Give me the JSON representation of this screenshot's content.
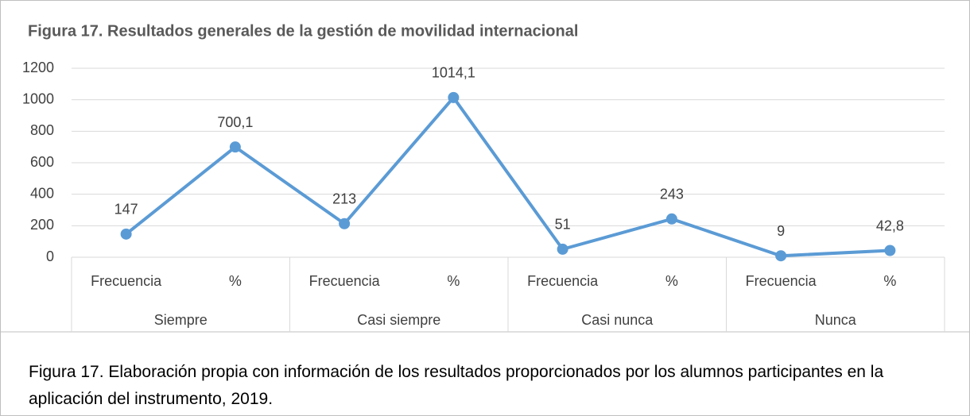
{
  "chart_data": {
    "type": "line",
    "title": "Figura 17. Resultados generales de la gestión de movilidad internacional",
    "categories": [
      "Frecuencia",
      "%",
      "Frecuencia",
      "%",
      "Frecuencia",
      "%",
      "Frecuencia",
      "%"
    ],
    "groups": [
      "Siempre",
      "Casi siempre",
      "Casi nunca",
      "Nunca"
    ],
    "values": [
      147,
      700.1,
      213,
      1014.1,
      51,
      243,
      9,
      42.8
    ],
    "value_labels": [
      "147",
      "700,1",
      "213",
      "1014,1",
      "51",
      "243",
      "9",
      "42,8"
    ],
    "color": "#5b9bd5",
    "ylim": [
      0,
      1200
    ],
    "yticks": [
      0,
      200,
      400,
      600,
      800,
      1000,
      1200
    ],
    "grid": true
  },
  "caption": "Figura 17. Elaboración propia con información de los resultados proporcionados por los alumnos participantes en la aplicación del instrumento, 2019."
}
